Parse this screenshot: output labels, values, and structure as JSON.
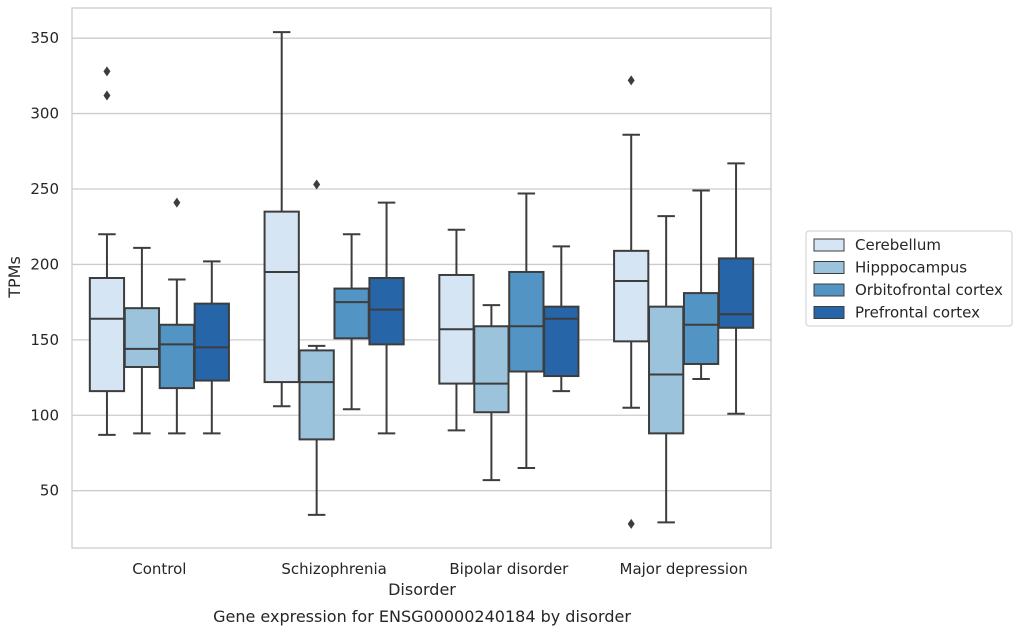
{
  "chart_data": {
    "type": "box",
    "title": "Gene expression for ENSG00000240184 by disorder",
    "xlabel": "Disorder",
    "ylabel": "TPMs",
    "ylim": [
      12,
      370
    ],
    "yticks": [
      50,
      100,
      150,
      200,
      250,
      300,
      350
    ],
    "grid": true,
    "legend_position": "right",
    "categories": [
      "Control",
      "Schizophrenia",
      "Bipolar disorder",
      "Major depression"
    ],
    "series": [
      {
        "name": "Cerebellum",
        "color": "#d5e5f4",
        "boxes": [
          {
            "whisker_low": 87,
            "q1": 116,
            "median": 164,
            "q3": 191,
            "whisker_high": 220,
            "outliers": [
              312,
              328
            ]
          },
          {
            "whisker_low": 106,
            "q1": 122,
            "median": 195,
            "q3": 235,
            "whisker_high": 354,
            "outliers": []
          },
          {
            "whisker_low": 90,
            "q1": 121,
            "median": 157,
            "q3": 193,
            "whisker_high": 223,
            "outliers": []
          },
          {
            "whisker_low": 105,
            "q1": 149,
            "median": 189,
            "q3": 209,
            "whisker_high": 286,
            "outliers": [
              322,
              28
            ]
          }
        ]
      },
      {
        "name": "Hipppocampus",
        "color": "#9cc3dc",
        "boxes": [
          {
            "whisker_low": 88,
            "q1": 132,
            "median": 144,
            "q3": 171,
            "whisker_high": 211,
            "outliers": []
          },
          {
            "whisker_low": 34,
            "q1": 84,
            "median": 122,
            "q3": 143,
            "whisker_high": 146,
            "outliers": [
              253
            ]
          },
          {
            "whisker_low": 57,
            "q1": 102,
            "median": 121,
            "q3": 159,
            "whisker_high": 173,
            "outliers": []
          },
          {
            "whisker_low": 29,
            "q1": 88,
            "median": 127,
            "q3": 172,
            "whisker_high": 232,
            "outliers": []
          }
        ]
      },
      {
        "name": "Orbitofrontal cortex",
        "color": "#5294c3",
        "boxes": [
          {
            "whisker_low": 88,
            "q1": 118,
            "median": 147,
            "q3": 160,
            "whisker_high": 190,
            "outliers": [
              241
            ]
          },
          {
            "whisker_low": 104,
            "q1": 151,
            "median": 175,
            "q3": 184,
            "whisker_high": 220,
            "outliers": []
          },
          {
            "whisker_low": 65,
            "q1": 129,
            "median": 159,
            "q3": 195,
            "whisker_high": 247,
            "outliers": []
          },
          {
            "whisker_low": 124,
            "q1": 134,
            "median": 160,
            "q3": 181,
            "whisker_high": 249,
            "outliers": []
          }
        ]
      },
      {
        "name": "Prefrontal cortex",
        "color": "#2565a8",
        "boxes": [
          {
            "whisker_low": 88,
            "q1": 123,
            "median": 145,
            "q3": 174,
            "whisker_high": 202,
            "outliers": []
          },
          {
            "whisker_low": 88,
            "q1": 147,
            "median": 170,
            "q3": 191,
            "whisker_high": 241,
            "outliers": []
          },
          {
            "whisker_low": 116,
            "q1": 126,
            "median": 164,
            "q3": 172,
            "whisker_high": 212,
            "outliers": []
          },
          {
            "whisker_low": 101,
            "q1": 158,
            "median": 167,
            "q3": 204,
            "whisker_high": 267,
            "outliers": []
          }
        ]
      }
    ]
  }
}
